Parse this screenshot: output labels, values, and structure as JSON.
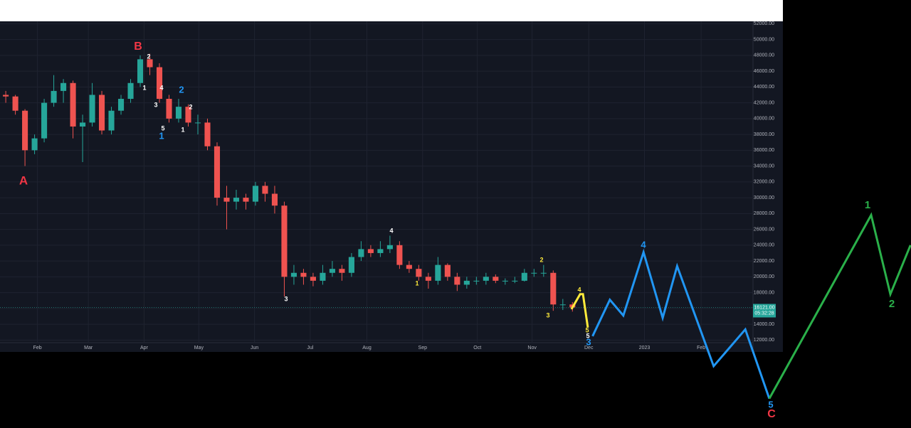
{
  "chart_data": {
    "type": "candlestick",
    "up_color": "#26a69a",
    "down_color": "#ef5350",
    "grid": true,
    "xlim": [
      -0.6,
      77.8
    ],
    "ylim": [
      10500,
      52300
    ],
    "xticks": [
      {
        "value": 3.3,
        "label": "Feb"
      },
      {
        "value": 8.6,
        "label": "Mar"
      },
      {
        "value": 14.4,
        "label": "Apr"
      },
      {
        "value": 20.1,
        "label": "May"
      },
      {
        "value": 25.9,
        "label": "Jun"
      },
      {
        "value": 31.7,
        "label": "Jul"
      },
      {
        "value": 37.6,
        "label": "Aug"
      },
      {
        "value": 43.4,
        "label": "Sep"
      },
      {
        "value": 49.1,
        "label": "Oct"
      },
      {
        "value": 54.8,
        "label": "Nov"
      },
      {
        "value": 60.7,
        "label": "Dec"
      },
      {
        "value": 66.5,
        "label": "2023"
      },
      {
        "value": 72.4,
        "label": "Feb"
      }
    ],
    "yticks": [
      {
        "value": 12000,
        "label": "12000.00"
      },
      {
        "value": 14000,
        "label": "14000.00"
      },
      {
        "value": 16000,
        "label": "16000.00"
      },
      {
        "value": 18000,
        "label": "18000.00"
      },
      {
        "value": 20000,
        "label": "20000.00"
      },
      {
        "value": 22000,
        "label": "22000.00"
      },
      {
        "value": 24000,
        "label": "24000.00"
      },
      {
        "value": 26000,
        "label": "26000.00"
      },
      {
        "value": 28000,
        "label": "28000.00"
      },
      {
        "value": 30000,
        "label": "30000.00"
      },
      {
        "value": 32000,
        "label": "32000.00"
      },
      {
        "value": 34000,
        "label": "34000.00"
      },
      {
        "value": 36000,
        "label": "36000.00"
      },
      {
        "value": 38000,
        "label": "38000.00"
      },
      {
        "value": 40000,
        "label": "40000.00"
      },
      {
        "value": 42000,
        "label": "42000.00"
      },
      {
        "value": 44000,
        "label": "44000.00"
      },
      {
        "value": 46000,
        "label": "46000.00"
      },
      {
        "value": 48000,
        "label": "48000.00"
      },
      {
        "value": 50000,
        "label": "50000.00"
      },
      {
        "value": 52000,
        "label": "52000.00"
      }
    ],
    "candles": [
      [
        43000,
        43500,
        42000,
        42800
      ],
      [
        42800,
        43000,
        40500,
        41000
      ],
      [
        41000,
        41200,
        34000,
        36000
      ],
      [
        36000,
        38000,
        35500,
        37500
      ],
      [
        37500,
        42500,
        37000,
        42000
      ],
      [
        42000,
        45500,
        41500,
        43500
      ],
      [
        43500,
        45000,
        42000,
        44500
      ],
      [
        44500,
        44800,
        37500,
        39000
      ],
      [
        39000,
        40500,
        34500,
        39500
      ],
      [
        39500,
        44500,
        39000,
        43000
      ],
      [
        43000,
        43500,
        38000,
        38500
      ],
      [
        38500,
        41500,
        38000,
        41000
      ],
      [
        41000,
        43000,
        40500,
        42500
      ],
      [
        42500,
        45000,
        42000,
        44500
      ],
      [
        44500,
        48000,
        44000,
        47500
      ],
      [
        47500,
        48200,
        45500,
        46500
      ],
      [
        46500,
        47000,
        42000,
        42500
      ],
      [
        42500,
        43000,
        39500,
        40000
      ],
      [
        40000,
        42500,
        39500,
        41500
      ],
      [
        41500,
        41800,
        39000,
        39500
      ],
      [
        39500,
        40500,
        38000,
        39500
      ],
      [
        39500,
        40000,
        36000,
        36500
      ],
      [
        36500,
        37000,
        29000,
        30000
      ],
      [
        30000,
        31500,
        26000,
        29500
      ],
      [
        29500,
        31000,
        28500,
        30000
      ],
      [
        30000,
        30500,
        28500,
        29500
      ],
      [
        29500,
        32000,
        29000,
        31500
      ],
      [
        31500,
        32000,
        29500,
        30500
      ],
      [
        30500,
        31500,
        28000,
        29000
      ],
      [
        29000,
        29500,
        17500,
        20000
      ],
      [
        20000,
        21500,
        19000,
        20500
      ],
      [
        20500,
        21000,
        19000,
        20000
      ],
      [
        20000,
        20500,
        18800,
        19500
      ],
      [
        19500,
        21500,
        19000,
        20500
      ],
      [
        20500,
        22000,
        20000,
        21000
      ],
      [
        21000,
        21500,
        19500,
        20500
      ],
      [
        20500,
        23000,
        20000,
        22500
      ],
      [
        22500,
        24500,
        22000,
        23500
      ],
      [
        23500,
        24000,
        22500,
        23000
      ],
      [
        23000,
        24500,
        22500,
        23500
      ],
      [
        23500,
        25200,
        23000,
        24000
      ],
      [
        24000,
        24500,
        21000,
        21500
      ],
      [
        21500,
        22000,
        20500,
        21000
      ],
      [
        21000,
        21500,
        19500,
        20000
      ],
      [
        20000,
        20500,
        18500,
        19500
      ],
      [
        19500,
        22500,
        19000,
        21500
      ],
      [
        21500,
        21700,
        19500,
        20000
      ],
      [
        20000,
        20500,
        18200,
        19000
      ],
      [
        19000,
        20000,
        18500,
        19500
      ],
      [
        19500,
        20000,
        19000,
        19500
      ],
      [
        19500,
        20500,
        19000,
        20000
      ],
      [
        20000,
        20300,
        19200,
        19500
      ],
      [
        19500,
        19800,
        19000,
        19500
      ],
      [
        19500,
        20000,
        19200,
        19500
      ],
      [
        19500,
        21000,
        19400,
        20500
      ],
      [
        20500,
        21000,
        20000,
        20500
      ],
      [
        20500,
        21500,
        20000,
        20500
      ],
      [
        20500,
        20800,
        15700,
        16500
      ],
      [
        16500,
        17200,
        15800,
        16500
      ],
      [
        16500,
        16800,
        15600,
        16121
      ]
    ],
    "price_label": {
      "value": 16121,
      "label": "16121.00"
    },
    "countdown": "05:32:28",
    "projections": [
      {
        "color": "#ffeb3b",
        "x": [
          58.9,
          59.8,
          60.1,
          60.6
        ],
        "values": [
          15900,
          17800,
          17800,
          13600
        ]
      },
      {
        "color": "#2196f3",
        "x": [
          61.1,
          62.9,
          64.3,
          66.4,
          68.4,
          69.9,
          73.7,
          77.0,
          79.5
        ],
        "values": [
          12500,
          17100,
          15100,
          23100,
          14800,
          21350,
          8700,
          13350,
          4600
        ]
      },
      {
        "color": "#2ab04a",
        "x": [
          79.5,
          90.1,
          92.1,
          94.2
        ],
        "values": [
          4600,
          27800,
          17800,
          24000
        ]
      }
    ],
    "annotations": [
      {
        "text": "A",
        "color": "#f23645"
      },
      {
        "text": "B",
        "color": "#f23645"
      },
      {
        "text": "2",
        "color": "#ffffff"
      },
      {
        "text": "1",
        "color": "#ffffff"
      },
      {
        "text": "4",
        "color": "#ffffff"
      },
      {
        "text": "3",
        "color": "#ffffff"
      },
      {
        "text": "5",
        "color": "#ffffff"
      },
      {
        "text": "1",
        "color": "#2196f3"
      },
      {
        "text": "2",
        "color": "#2196f3"
      },
      {
        "text": "2",
        "color": "#ffffff"
      },
      {
        "text": "1",
        "color": "#ffffff"
      },
      {
        "text": "3",
        "color": "#ffffff"
      },
      {
        "text": "4",
        "color": "#ffffff"
      },
      {
        "text": "1",
        "color": "#ffeb3b"
      },
      {
        "text": "2",
        "color": "#ffeb3b"
      },
      {
        "text": "3",
        "color": "#ffeb3b"
      },
      {
        "text": "4",
        "color": "#ffeb3b"
      },
      {
        "text": "5",
        "color": "#ffeb3b"
      },
      {
        "text": "5",
        "color": "#ffffff"
      },
      {
        "text": "3",
        "color": "#2196f3"
      },
      {
        "text": "4",
        "color": "#2196f3"
      },
      {
        "text": "5",
        "color": "#2196f3"
      },
      {
        "text": "C",
        "color": "#f23645"
      },
      {
        "text": "1",
        "color": "#2ab04a"
      },
      {
        "text": "2",
        "color": "#2ab04a"
      }
    ]
  }
}
